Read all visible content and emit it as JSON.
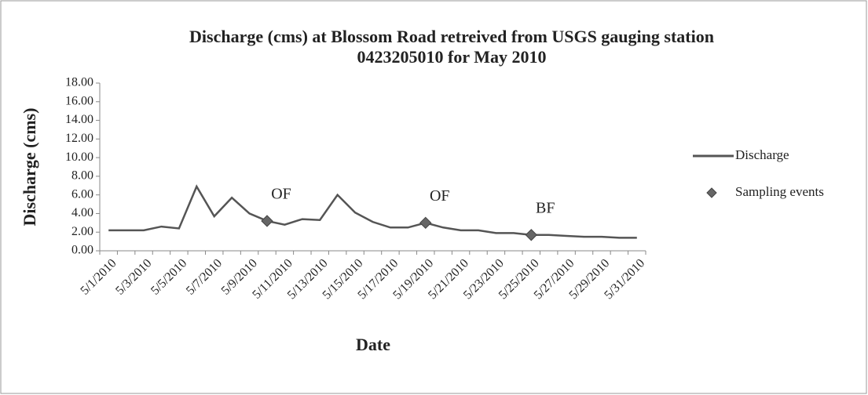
{
  "chart_data": {
    "type": "line",
    "title": "Discharge (cms) at Blossom Road retreived from USGS gauging station",
    "subtitle": "0423205010 for May 2010",
    "x_label": "Date",
    "y_label": "Discharge (cms)",
    "categories": [
      "5/1/2010",
      null,
      "5/3/2010",
      null,
      "5/5/2010",
      null,
      "5/7/2010",
      null,
      "5/9/2010",
      null,
      "5/11/2010",
      null,
      "5/13/2010",
      null,
      "5/15/2010",
      null,
      "5/17/2010",
      null,
      "5/19/2010",
      null,
      "5/21/2010",
      null,
      "5/23/2010",
      null,
      "5/25/2010",
      null,
      "5/27/2010",
      null,
      "5/29/2010",
      null,
      "5/31/2010"
    ],
    "series": [
      {
        "name": "Discharge",
        "color": "#555555",
        "marker": "none",
        "values": [
          2.2,
          2.2,
          2.2,
          2.6,
          2.4,
          6.9,
          3.7,
          5.7,
          4.0,
          3.2,
          2.8,
          3.4,
          3.3,
          6.0,
          4.1,
          3.1,
          2.5,
          2.5,
          3.0,
          2.5,
          2.2,
          2.2,
          1.9,
          1.9,
          1.7,
          1.7,
          1.6,
          1.5,
          1.5,
          1.4,
          1.4
        ]
      },
      {
        "name": "Sampling events",
        "color": "#666666",
        "marker": "diamond",
        "values": [
          null,
          null,
          null,
          null,
          null,
          null,
          null,
          null,
          null,
          3.2,
          null,
          null,
          null,
          null,
          null,
          null,
          null,
          null,
          3.0,
          null,
          null,
          null,
          null,
          null,
          1.7,
          null,
          null,
          null,
          null,
          null,
          null
        ],
        "value_labels": [
          null,
          null,
          null,
          null,
          null,
          null,
          null,
          null,
          null,
          "OF",
          null,
          null,
          null,
          null,
          null,
          null,
          null,
          null,
          "OF",
          null,
          null,
          null,
          null,
          null,
          "BF",
          null,
          null,
          null,
          null,
          null,
          null
        ]
      }
    ],
    "ylim": [
      0,
      18
    ],
    "yticks": [
      {
        "value": 0,
        "label": "0.00"
      },
      {
        "value": 2,
        "label": "2.00"
      },
      {
        "value": 4,
        "label": "4.00"
      },
      {
        "value": 6,
        "label": "6.00"
      },
      {
        "value": 8,
        "label": "8.00"
      },
      {
        "value": 10,
        "label": "10.00"
      },
      {
        "value": 12,
        "label": "12.00"
      },
      {
        "value": 14,
        "label": "14.00"
      },
      {
        "value": 16,
        "label": "16.00"
      },
      {
        "value": 18,
        "label": "18.00"
      }
    ],
    "grid": false,
    "legend": "right"
  }
}
